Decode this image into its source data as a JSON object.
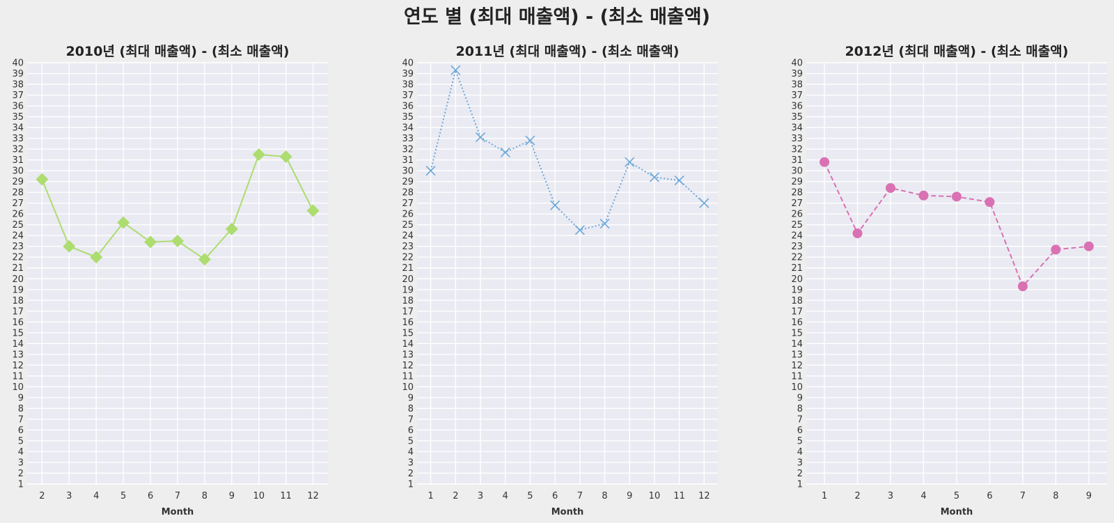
{
  "suptitle": "연도 별 (최대 매출액) - (최소 매출액)",
  "chart_data": [
    {
      "type": "line",
      "title": "2010년 (최대 매출액) - (최소 매출액)",
      "xlabel": "Month",
      "ylabel": "",
      "x": [
        2,
        3,
        4,
        5,
        6,
        7,
        8,
        9,
        10,
        11,
        12
      ],
      "y": [
        29.2,
        23.0,
        22.0,
        25.2,
        23.4,
        23.5,
        21.8,
        24.6,
        31.5,
        31.3,
        26.3
      ],
      "ylim": [
        1,
        40
      ],
      "yticks": [
        1,
        2,
        3,
        4,
        5,
        6,
        7,
        8,
        9,
        10,
        11,
        12,
        13,
        14,
        15,
        16,
        17,
        18,
        19,
        20,
        21,
        22,
        23,
        24,
        25,
        26,
        27,
        28,
        29,
        30,
        31,
        32,
        33,
        34,
        35,
        36,
        37,
        38,
        39,
        40
      ],
      "color": "#addc6f",
      "marker": "diamond",
      "linestyle": "solid",
      "grid": true
    },
    {
      "type": "line",
      "title": "2011년 (최대 매출액) - (최소 매출액)",
      "xlabel": "Month",
      "ylabel": "",
      "x": [
        1,
        2,
        3,
        4,
        5,
        6,
        7,
        8,
        9,
        10,
        11,
        12
      ],
      "y": [
        30.0,
        39.3,
        33.1,
        31.7,
        32.8,
        26.8,
        24.5,
        25.1,
        30.8,
        29.4,
        29.1,
        27.0
      ],
      "ylim": [
        1,
        40
      ],
      "yticks": [
        1,
        2,
        3,
        4,
        5,
        6,
        7,
        8,
        9,
        10,
        11,
        12,
        13,
        14,
        15,
        16,
        17,
        18,
        19,
        20,
        21,
        22,
        23,
        24,
        25,
        26,
        27,
        28,
        29,
        30,
        31,
        32,
        33,
        34,
        35,
        36,
        37,
        38,
        39,
        40
      ],
      "color": "#6aa8d8",
      "marker": "x",
      "linestyle": "dotted",
      "grid": true
    },
    {
      "type": "line",
      "title": "2012년 (최대 매출액) - (최소 매출액)",
      "xlabel": "Month",
      "ylabel": "",
      "x": [
        1,
        2,
        3,
        4,
        5,
        6,
        7,
        8,
        9
      ],
      "y": [
        30.8,
        24.2,
        28.4,
        27.7,
        27.6,
        27.1,
        19.3,
        22.7,
        23.0
      ],
      "ylim": [
        1,
        40
      ],
      "yticks": [
        1,
        2,
        3,
        4,
        5,
        6,
        7,
        8,
        9,
        10,
        11,
        12,
        13,
        14,
        15,
        16,
        17,
        18,
        19,
        20,
        21,
        22,
        23,
        24,
        25,
        26,
        27,
        28,
        29,
        30,
        31,
        32,
        33,
        34,
        35,
        36,
        37,
        38,
        39,
        40
      ],
      "color": "#d971b3",
      "marker": "circle",
      "linestyle": "dashed",
      "grid": true
    }
  ]
}
